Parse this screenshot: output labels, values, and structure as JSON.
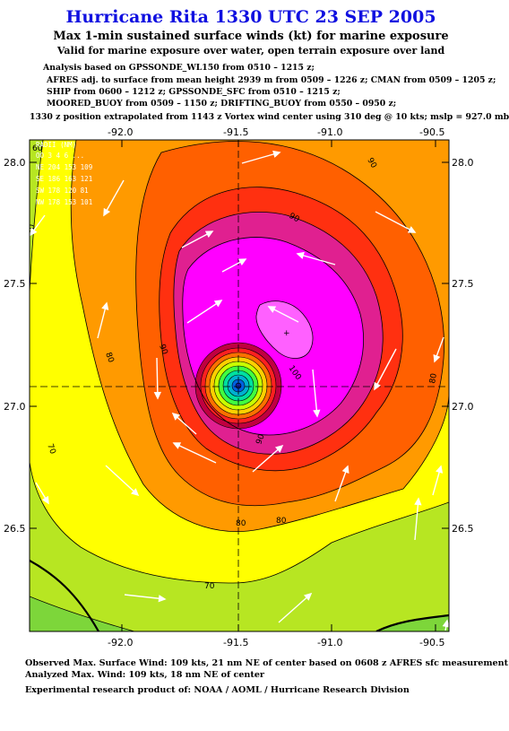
{
  "header": {
    "title": "Hurricane Rita 1330 UTC 23 SEP 2005",
    "subtitle": "Max 1-min sustained surface winds (kt) for marine exposure",
    "subtitle2": "Valid for marine exposure over water, open terrain exposure over land"
  },
  "analysis": {
    "line1": "Analysis based on  GPSSONDE_WL150 from 0510 – 1215 z;",
    "line2": "AFRES adj. to surface from mean height 2939 m from 0509 – 1226 z;  CMAN from 0509 – 1205 z;",
    "line3": "SHIP from 0600 – 1212 z;  GPSSONDE_SFC from 0510 – 1215 z;",
    "line4": "MOORED_BUOY from 0509 – 1150 z;  DRIFTING_BUOY from 0550 – 0950 z;",
    "line5": "1330 z position extrapolated from 1143 z Vortex wind center using 310 deg @ 10 kts; mslp = 927.0 mb"
  },
  "map": {
    "lon_ticks": [
      "-92.0",
      "-91.5",
      "-91.0",
      "-90.5"
    ],
    "lat_ticks": [
      "28.0",
      "27.5",
      "27.0",
      "26.5"
    ],
    "contour_labels": [
      "60",
      "70",
      "70",
      "70",
      "80",
      "80",
      "80",
      "80",
      "90",
      "90",
      "90",
      "90",
      "100"
    ],
    "radii_table": [
      "RADII (NM)",
      "OO 3 4 6 ...",
      "NE 204 153 109",
      "SE 186 163 121",
      "SW 178 120 81",
      "NW 178 153 101"
    ]
  },
  "footer": {
    "line1": "Observed Max. Surface Wind: 109 kts, 21 nm NE of center based on 0608 z AFRES sfc measurement",
    "line2": "Analyzed Max. Wind: 109 kts, 18 nm NE of center",
    "line3": "Experimental research product of:  NOAA / AOML / Hurricane Research Division"
  }
}
